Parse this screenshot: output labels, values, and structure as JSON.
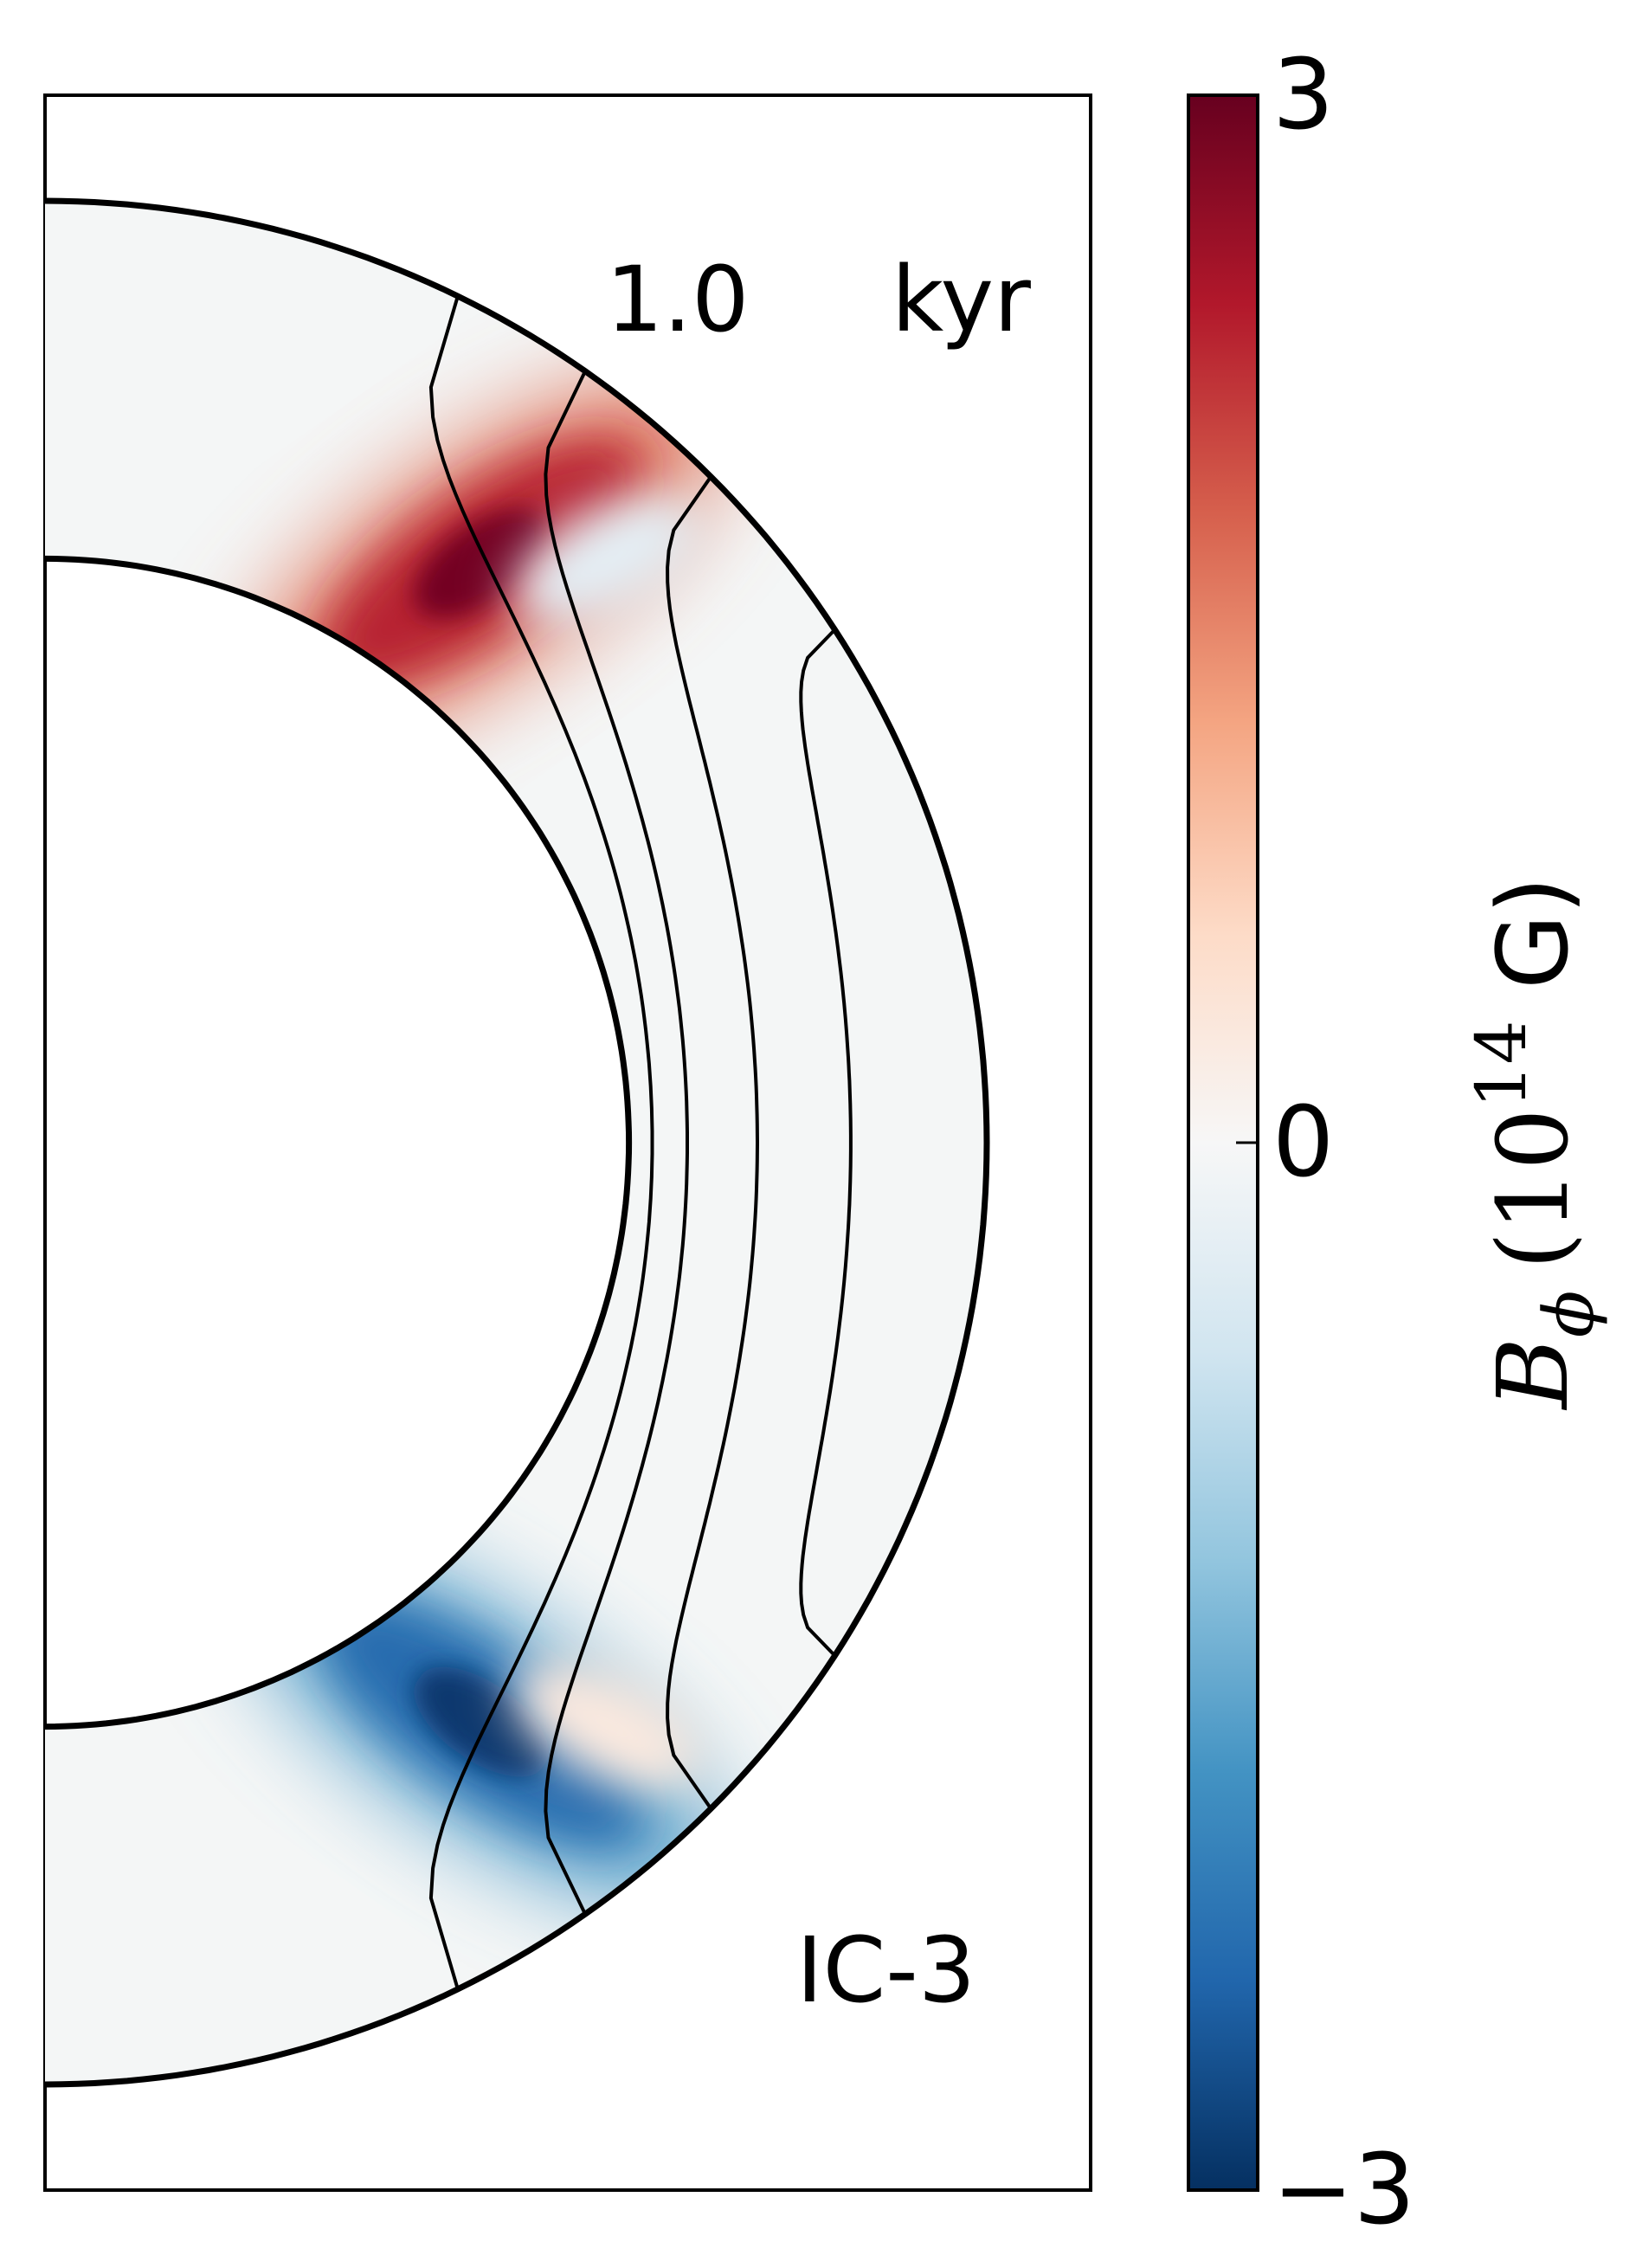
{
  "chart_data": {
    "type": "heatmap",
    "plot": "meridional-cross-section",
    "time_value": "1.0",
    "time_unit": "kyr",
    "model_label": "IC-3",
    "quantity": {
      "symbol": "B",
      "subscript": "ϕ",
      "unit_prefix": "(10",
      "unit_exponent": "14",
      "unit_suffix": " G)"
    },
    "colorbar": {
      "colormap": "RdBu_r",
      "vmin": -3,
      "vmax": 3,
      "tick_values": [
        -3,
        0,
        3
      ],
      "tick_labels": [
        "−3",
        "0",
        "3"
      ],
      "colors": [
        "#053061",
        "#2166ac",
        "#4393c3",
        "#92c5de",
        "#d1e5f0",
        "#f7f7f7",
        "#fddbc7",
        "#f4a582",
        "#d6604d",
        "#b2182b",
        "#67001f"
      ]
    },
    "geometry": {
      "inner_radius_fraction": 0.62,
      "outer_radius": 1.0
    },
    "field_features": [
      {
        "colatitude_deg": 37,
        "r": 0.77,
        "value": 2.9
      },
      {
        "colatitude_deg": 143,
        "r": 0.77,
        "value": -2.9
      },
      {
        "colatitude_deg": 44,
        "r": 0.86,
        "value": -0.5
      },
      {
        "colatitude_deg": 136,
        "r": 0.86,
        "value": 0.5
      }
    ],
    "field_lines": 4
  }
}
